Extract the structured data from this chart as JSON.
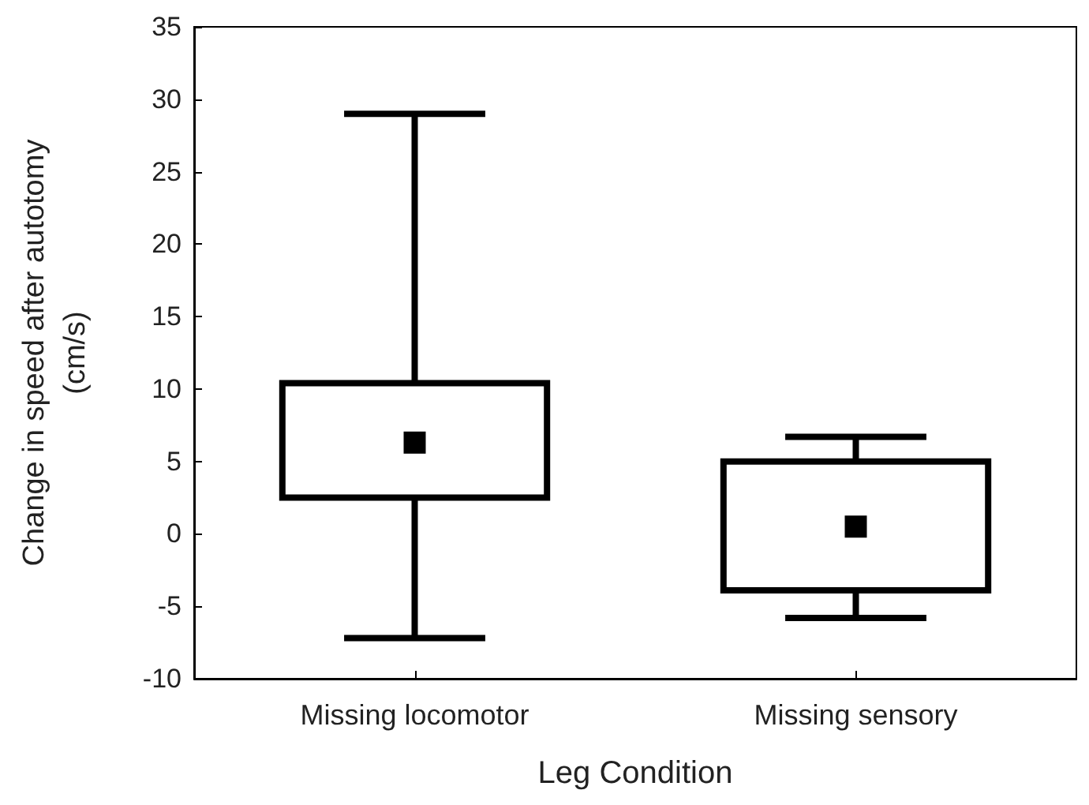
{
  "chart_data": {
    "type": "box",
    "xlabel": "Leg Condition",
    "ylabel": "Change in speed after autotomy (cm/s)",
    "categories": [
      "Missing locomotor",
      "Missing sensory"
    ],
    "boxes": [
      {
        "low": -7.2,
        "q1": 2.5,
        "median": 6.3,
        "q3": 10.4,
        "high": 29.0
      },
      {
        "low": -5.8,
        "q1": -3.9,
        "median": 0.5,
        "q3": 5.0,
        "high": 6.7
      }
    ],
    "color": "#000000",
    "ylim": [
      -10,
      35
    ],
    "yticks": [
      -10,
      -5,
      0,
      5,
      10,
      15,
      20,
      25,
      30,
      35
    ],
    "grid": false,
    "marker": "square"
  }
}
